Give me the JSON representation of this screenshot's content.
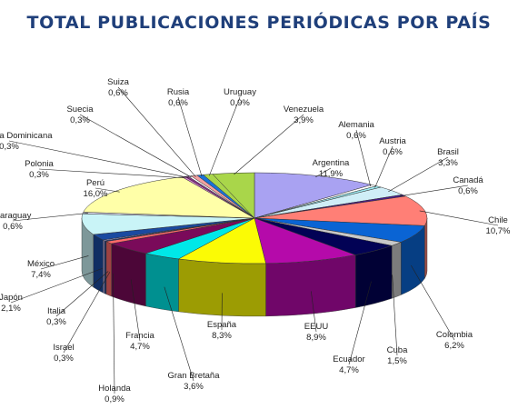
{
  "chart_data": {
    "type": "pie",
    "title": "TOTAL PUBLICACIONES PERIÓDICAS POR PAÍS",
    "series": [
      {
        "name": "Argentina",
        "value": 11.9,
        "label": "11,9%",
        "color": "#a9a2f2"
      },
      {
        "name": "Alemania",
        "value": 0.6,
        "label": "0,6%",
        "color": "#ffffff"
      },
      {
        "name": "Austria",
        "value": 0.6,
        "label": "0,6%",
        "color": "#9ce9f0"
      },
      {
        "name": "Brasil",
        "value": 3.3,
        "label": "3,3%",
        "color": "#cfeef7"
      },
      {
        "name": "Canadá",
        "value": 0.6,
        "label": "0,6%",
        "color": "#4a1c8c"
      },
      {
        "name": "Chile",
        "value": 10.7,
        "label": "10,7%",
        "color": "#ff7f76"
      },
      {
        "name": "Colombia",
        "value": 6.2,
        "label": "6,2%",
        "color": "#0a64d4"
      },
      {
        "name": "Cuba",
        "value": 1.5,
        "label": "1,5%",
        "color": "#c8c8c8"
      },
      {
        "name": "Ecuador",
        "value": 4.7,
        "label": "4,7%",
        "color": "#020255"
      },
      {
        "name": "EEUU",
        "value": 8.9,
        "label": "8,9%",
        "color": "#b50aaa"
      },
      {
        "name": "España",
        "value": 8.3,
        "label": "8,3%",
        "color": "#fbfb05"
      },
      {
        "name": "Gran Bretaña",
        "value": 3.6,
        "label": "3,6%",
        "color": "#00e8e8"
      },
      {
        "name": "Francia",
        "value": 4.7,
        "label": "4,7%",
        "color": "#7a0a5a"
      },
      {
        "name": "Holanda",
        "value": 0.9,
        "label": "0,9%",
        "color": "#ff6a6a"
      },
      {
        "name": "Israel",
        "value": 0.3,
        "label": "0,3%",
        "color": "#1f3d8a"
      },
      {
        "name": "Italia",
        "value": 0.3,
        "label": "0,3%",
        "color": "#b8b8ff"
      },
      {
        "name": "Japón",
        "value": 2.1,
        "label": "2,1%",
        "color": "#1a4aa0"
      },
      {
        "name": "México",
        "value": 7.4,
        "label": "7,4%",
        "color": "#c9f4f7"
      },
      {
        "name": "Paraguay",
        "value": 0.6,
        "label": "0,6%",
        "color": "#e6e6ff"
      },
      {
        "name": "Perú",
        "value": 16.0,
        "label": "16,0%",
        "color": "#ffffa8"
      },
      {
        "name": "Polonia",
        "value": 0.3,
        "label": "0,3%",
        "color": "#d47bd0"
      },
      {
        "name": "Republica Dominicana",
        "value": 0.3,
        "label": "0,3%",
        "color": "#8a2b8a"
      },
      {
        "name": "Suecia",
        "value": 0.3,
        "label": "0,3%",
        "color": "#ffffff"
      },
      {
        "name": "Suiza",
        "value": 0.6,
        "label": "0,6%",
        "color": "#f2a0a0"
      },
      {
        "name": "Rusia",
        "value": 0.6,
        "label": "0,6%",
        "color": "#1a72d8"
      },
      {
        "name": "Uruguay",
        "value": 0.9,
        "label": "0,9%",
        "color": "#a9d64a"
      },
      {
        "name": "Venezuela",
        "value": 3.9,
        "label": "3,9%",
        "color": "#a9d64a"
      }
    ]
  }
}
